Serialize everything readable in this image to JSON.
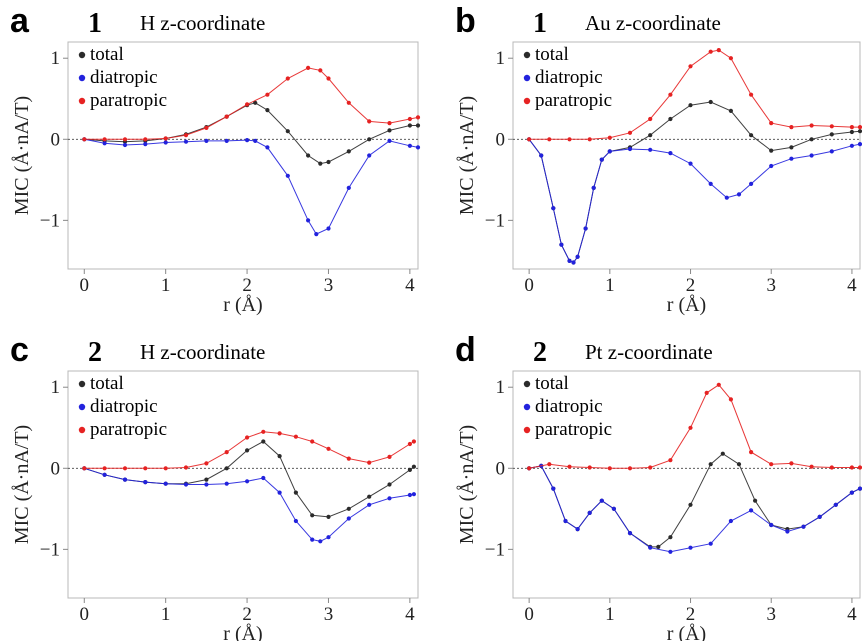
{
  "chart_data": [
    {
      "panel": "a",
      "number": "1",
      "title": "H z-coordinate",
      "type": "line",
      "xlabel": "r (Å)",
      "ylabel": "MIC (Å·nA/T)",
      "xlim": [
        -0.2,
        4.1
      ],
      "ylim": [
        -1.6,
        1.2
      ],
      "xticks": [
        0,
        1,
        2,
        3,
        4
      ],
      "yticks": [
        -1,
        0,
        1
      ],
      "grid": false,
      "legend_position": "top-left",
      "series": [
        {
          "name": "total",
          "color": "#2b2b2b",
          "x": [
            0,
            0.25,
            0.5,
            0.75,
            1.0,
            1.25,
            1.5,
            1.75,
            2.0,
            2.1,
            2.25,
            2.5,
            2.75,
            2.9,
            3.0,
            3.25,
            3.5,
            3.75,
            4.0,
            4.1
          ],
          "y": [
            0,
            -0.02,
            -0.03,
            -0.02,
            0.01,
            0.06,
            0.15,
            0.28,
            0.42,
            0.45,
            0.36,
            0.1,
            -0.2,
            -0.3,
            -0.28,
            -0.15,
            0.0,
            0.11,
            0.17,
            0.17
          ]
        },
        {
          "name": "diatropic",
          "color": "#2222dd",
          "x": [
            0,
            0.25,
            0.5,
            0.75,
            1.0,
            1.25,
            1.5,
            1.75,
            2.0,
            2.1,
            2.25,
            2.5,
            2.75,
            2.85,
            3.0,
            3.25,
            3.5,
            3.75,
            4.0,
            4.1
          ],
          "y": [
            0,
            -0.05,
            -0.07,
            -0.06,
            -0.04,
            -0.03,
            -0.02,
            -0.02,
            -0.01,
            -0.02,
            -0.1,
            -0.45,
            -1.0,
            -1.17,
            -1.1,
            -0.6,
            -0.2,
            -0.02,
            -0.08,
            -0.1
          ]
        },
        {
          "name": "paratropic",
          "color": "#e62222",
          "x": [
            0,
            0.25,
            0.5,
            0.75,
            1.0,
            1.25,
            1.5,
            1.75,
            2.0,
            2.25,
            2.5,
            2.75,
            2.9,
            3.0,
            3.25,
            3.5,
            3.75,
            4.0,
            4.1
          ],
          "y": [
            0,
            0,
            0,
            0,
            0.01,
            0.05,
            0.14,
            0.28,
            0.43,
            0.55,
            0.75,
            0.88,
            0.85,
            0.75,
            0.45,
            0.22,
            0.2,
            0.25,
            0.27
          ]
        }
      ]
    },
    {
      "panel": "b",
      "number": "1",
      "title": "Au z-coordinate",
      "type": "line",
      "xlabel": "r (Å)",
      "ylabel": "MIC (Å·nA/T)",
      "xlim": [
        -0.2,
        4.1
      ],
      "ylim": [
        -1.6,
        1.2
      ],
      "xticks": [
        0,
        1,
        2,
        3,
        4
      ],
      "yticks": [
        -1,
        0,
        1
      ],
      "grid": false,
      "legend_position": "top-left",
      "series": [
        {
          "name": "total",
          "color": "#2b2b2b",
          "x": [
            0,
            0.15,
            0.3,
            0.4,
            0.5,
            0.55,
            0.6,
            0.7,
            0.8,
            0.9,
            1.0,
            1.25,
            1.5,
            1.75,
            2.0,
            2.25,
            2.5,
            2.75,
            3.0,
            3.25,
            3.5,
            3.75,
            4.0,
            4.1
          ],
          "y": [
            0,
            -0.2,
            -0.85,
            -1.3,
            -1.5,
            -1.52,
            -1.45,
            -1.1,
            -0.6,
            -0.25,
            -0.15,
            -0.1,
            0.05,
            0.25,
            0.42,
            0.46,
            0.35,
            0.05,
            -0.14,
            -0.1,
            0.0,
            0.06,
            0.09,
            0.1
          ]
        },
        {
          "name": "diatropic",
          "color": "#2222dd",
          "x": [
            0,
            0.15,
            0.3,
            0.4,
            0.5,
            0.55,
            0.6,
            0.7,
            0.8,
            0.9,
            1.0,
            1.25,
            1.5,
            1.75,
            2.0,
            2.25,
            2.45,
            2.6,
            2.75,
            3.0,
            3.25,
            3.5,
            3.75,
            4.0,
            4.1
          ],
          "y": [
            0,
            -0.2,
            -0.85,
            -1.3,
            -1.5,
            -1.52,
            -1.45,
            -1.1,
            -0.6,
            -0.25,
            -0.15,
            -0.12,
            -0.13,
            -0.17,
            -0.3,
            -0.55,
            -0.72,
            -0.68,
            -0.55,
            -0.33,
            -0.24,
            -0.2,
            -0.15,
            -0.08,
            -0.06
          ]
        },
        {
          "name": "paratropic",
          "color": "#e62222",
          "x": [
            0,
            0.25,
            0.5,
            0.75,
            1.0,
            1.25,
            1.5,
            1.75,
            2.0,
            2.25,
            2.35,
            2.5,
            2.75,
            3.0,
            3.25,
            3.5,
            3.75,
            4.0,
            4.1
          ],
          "y": [
            0,
            0,
            0,
            0,
            0.02,
            0.08,
            0.25,
            0.55,
            0.9,
            1.08,
            1.1,
            1.0,
            0.55,
            0.2,
            0.15,
            0.17,
            0.16,
            0.15,
            0.15
          ]
        }
      ]
    },
    {
      "panel": "c",
      "number": "2",
      "title": "H z-coordinate",
      "type": "line",
      "xlabel": "r (Å)",
      "ylabel": "MIC (Å·nA/T)",
      "xlim": [
        -0.2,
        4.1
      ],
      "ylim": [
        -1.6,
        1.2
      ],
      "xticks": [
        0,
        1,
        2,
        3,
        4
      ],
      "yticks": [
        -1,
        0,
        1
      ],
      "grid": false,
      "legend_position": "top-left",
      "series": [
        {
          "name": "total",
          "color": "#2b2b2b",
          "x": [
            0,
            0.25,
            0.5,
            0.75,
            1.0,
            1.25,
            1.5,
            1.75,
            2.0,
            2.2,
            2.4,
            2.6,
            2.8,
            3.0,
            3.25,
            3.5,
            3.75,
            4.0,
            4.05
          ],
          "y": [
            0,
            -0.08,
            -0.14,
            -0.17,
            -0.19,
            -0.19,
            -0.14,
            0.0,
            0.22,
            0.33,
            0.15,
            -0.3,
            -0.58,
            -0.6,
            -0.5,
            -0.35,
            -0.2,
            -0.02,
            0.02
          ]
        },
        {
          "name": "diatropic",
          "color": "#2222dd",
          "x": [
            0,
            0.25,
            0.5,
            0.75,
            1.0,
            1.25,
            1.5,
            1.75,
            2.0,
            2.2,
            2.4,
            2.6,
            2.8,
            2.9,
            3.0,
            3.25,
            3.5,
            3.75,
            4.0,
            4.05
          ],
          "y": [
            0,
            -0.08,
            -0.14,
            -0.17,
            -0.19,
            -0.2,
            -0.2,
            -0.19,
            -0.16,
            -0.12,
            -0.3,
            -0.65,
            -0.88,
            -0.9,
            -0.85,
            -0.62,
            -0.45,
            -0.37,
            -0.33,
            -0.32
          ]
        },
        {
          "name": "paratropic",
          "color": "#e62222",
          "x": [
            0,
            0.25,
            0.5,
            0.75,
            1.0,
            1.25,
            1.5,
            1.75,
            2.0,
            2.2,
            2.4,
            2.6,
            2.8,
            3.0,
            3.25,
            3.5,
            3.75,
            4.0,
            4.05
          ],
          "y": [
            0,
            0,
            0,
            0,
            0,
            0.01,
            0.06,
            0.2,
            0.38,
            0.45,
            0.43,
            0.39,
            0.33,
            0.24,
            0.12,
            0.07,
            0.14,
            0.3,
            0.33
          ]
        }
      ]
    },
    {
      "panel": "d",
      "number": "2",
      "title": "Pt z-coordinate",
      "type": "line",
      "xlabel": "r (Å)",
      "ylabel": "MIC (Å·nA/T)",
      "xlim": [
        -0.2,
        4.1
      ],
      "ylim": [
        -1.6,
        1.2
      ],
      "xticks": [
        0,
        1,
        2,
        3,
        4
      ],
      "yticks": [
        -1,
        0,
        1
      ],
      "grid": false,
      "legend_position": "top-left",
      "series": [
        {
          "name": "total",
          "color": "#2b2b2b",
          "x": [
            0,
            0.15,
            0.3,
            0.45,
            0.6,
            0.75,
            0.9,
            1.05,
            1.25,
            1.5,
            1.6,
            1.75,
            2.0,
            2.25,
            2.4,
            2.6,
            2.8,
            3.0,
            3.2,
            3.4,
            3.6,
            3.8,
            4.0,
            4.1
          ],
          "y": [
            0,
            0.03,
            -0.25,
            -0.65,
            -0.75,
            -0.55,
            -0.4,
            -0.5,
            -0.8,
            -0.97,
            -0.97,
            -0.85,
            -0.45,
            0.05,
            0.18,
            0.05,
            -0.4,
            -0.7,
            -0.75,
            -0.72,
            -0.6,
            -0.45,
            -0.3,
            -0.25
          ]
        },
        {
          "name": "diatropic",
          "color": "#2222dd",
          "x": [
            0,
            0.15,
            0.3,
            0.45,
            0.6,
            0.75,
            0.9,
            1.05,
            1.25,
            1.5,
            1.75,
            2.0,
            2.25,
            2.5,
            2.75,
            3.0,
            3.2,
            3.4,
            3.6,
            3.8,
            4.0,
            4.1
          ],
          "y": [
            0,
            0.03,
            -0.25,
            -0.65,
            -0.75,
            -0.55,
            -0.4,
            -0.5,
            -0.8,
            -0.98,
            -1.03,
            -0.98,
            -0.93,
            -0.65,
            -0.52,
            -0.7,
            -0.78,
            -0.72,
            -0.6,
            -0.45,
            -0.3,
            -0.25
          ]
        },
        {
          "name": "paratropic",
          "color": "#e62222",
          "x": [
            0,
            0.25,
            0.5,
            0.75,
            1.0,
            1.25,
            1.5,
            1.75,
            2.0,
            2.2,
            2.35,
            2.5,
            2.75,
            3.0,
            3.25,
            3.5,
            3.75,
            4.0,
            4.1
          ],
          "y": [
            0,
            0.05,
            0.02,
            0.01,
            0,
            0,
            0.01,
            0.1,
            0.5,
            0.93,
            1.03,
            0.85,
            0.2,
            0.05,
            0.06,
            0.02,
            0.01,
            0.01,
            0.01
          ]
        }
      ]
    }
  ]
}
